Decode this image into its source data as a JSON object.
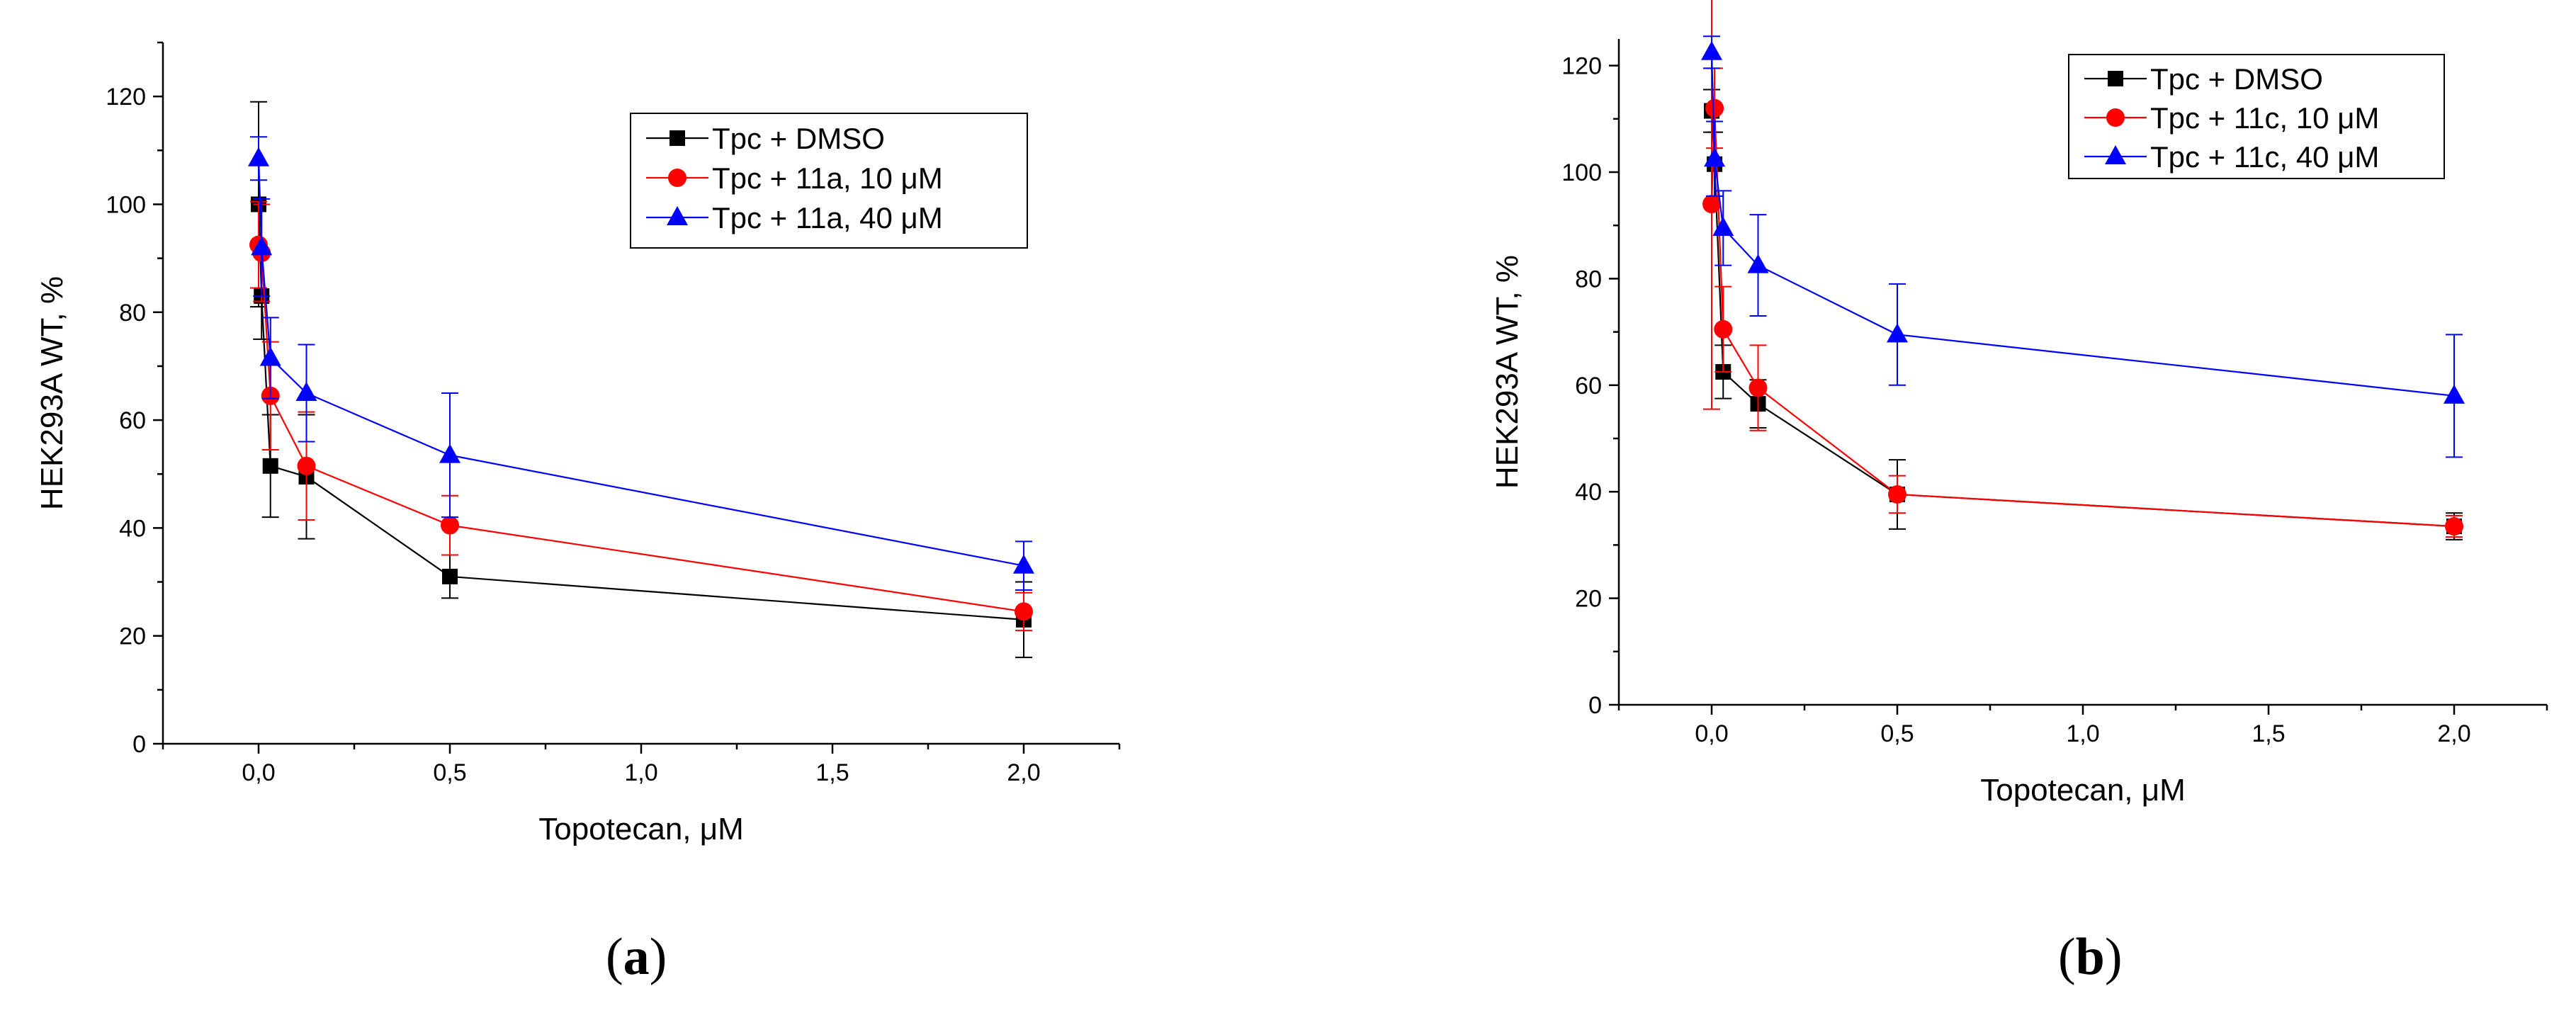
{
  "chart_data": [
    {
      "type": "line",
      "panel_label": "(a)",
      "panel_letter": "a",
      "xlabel": "Topotecan, μM",
      "ylabel": "HEK293A WT, %",
      "xlim": [
        -0.25,
        2.25
      ],
      "ylim": [
        0,
        130
      ],
      "xticks": [
        0.0,
        0.5,
        1.0,
        1.5,
        2.0
      ],
      "xtick_labels": [
        "0,0",
        "0,5",
        "1,0",
        "1,5",
        "2,0"
      ],
      "yticks": [
        0,
        20,
        40,
        60,
        80,
        100,
        120
      ],
      "ytick_labels": [
        "0",
        "20",
        "40",
        "60",
        "80",
        "100",
        "120"
      ],
      "grid": false,
      "legend_position": "top-right",
      "x": [
        0.0,
        0.0078,
        0.031,
        0.125,
        0.5,
        2.0
      ],
      "series": [
        {
          "name": "Tpc + DMSO",
          "color": "#000000",
          "marker": "square",
          "values": [
            100,
            83,
            51.5,
            49.5,
            31,
            23
          ],
          "errors": [
            19,
            8,
            9.5,
            11.5,
            4,
            7
          ]
        },
        {
          "name": "Tpc + 11a, 10 μM",
          "color": "#ff0000",
          "marker": "circle",
          "values": [
            92.5,
            91,
            64.5,
            51.5,
            40.5,
            24.5
          ],
          "errors": [
            8,
            9,
            10,
            10,
            5.5,
            3.5
          ]
        },
        {
          "name": "Tpc + 11a, 40 μM",
          "color": "#0000ff",
          "marker": "triangle",
          "values": [
            108.5,
            92,
            71.5,
            65,
            53.5,
            33
          ],
          "errors": [
            4,
            9,
            7.5,
            9,
            11.5,
            4.5
          ]
        }
      ]
    },
    {
      "type": "line",
      "panel_label": "(b)",
      "panel_letter": "b",
      "xlabel": "Topotecan, μM",
      "ylabel": "HEK293A WT, %",
      "xlim": [
        -0.25,
        2.25
      ],
      "ylim": [
        0,
        125
      ],
      "xticks": [
        0.0,
        0.5,
        1.0,
        1.5,
        2.0
      ],
      "xtick_labels": [
        "0,0",
        "0,5",
        "1,0",
        "1,5",
        "2,0"
      ],
      "yticks": [
        0,
        20,
        40,
        60,
        80,
        100,
        120
      ],
      "ytick_labels": [
        "0",
        "20",
        "40",
        "60",
        "80",
        "100",
        "120"
      ],
      "grid": false,
      "legend_position": "top-right",
      "x": [
        0.0,
        0.0078,
        0.031,
        0.125,
        0.5,
        2.0
      ],
      "series": [
        {
          "name": "Tpc + DMSO",
          "color": "#000000",
          "marker": "square",
          "values": [
            111.5,
            101.5,
            62.5,
            56.5,
            39.5,
            33.5
          ],
          "errors": [
            4,
            6,
            5,
            4.5,
            6.5,
            2.5
          ]
        },
        {
          "name": "Tpc + 11c, 10 μM",
          "color": "#ff0000",
          "marker": "circle",
          "values": [
            94,
            112,
            70.5,
            59.5,
            39.5,
            33.5
          ],
          "errors": [
            38.5,
            7.5,
            8,
            8,
            3.5,
            2
          ]
        },
        {
          "name": "Tpc + 11c, 40 μM",
          "color": "#0000ff",
          "marker": "triangle",
          "values": [
            122.5,
            102.5,
            89.5,
            82.5,
            69.5,
            58
          ],
          "errors": [
            3,
            7,
            7,
            9.5,
            9.5,
            11.5
          ]
        }
      ]
    }
  ]
}
